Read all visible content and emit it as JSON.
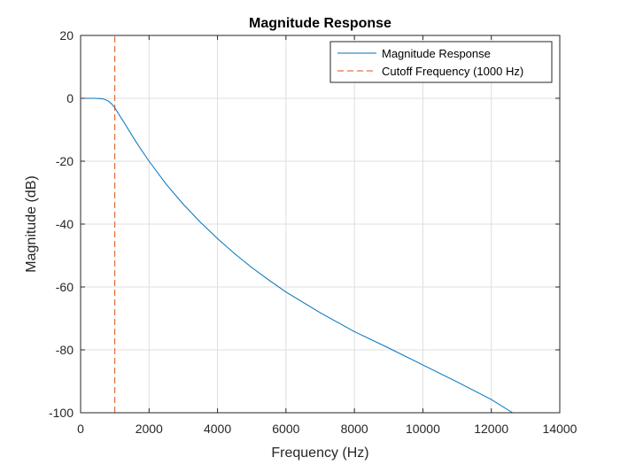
{
  "chart_data": {
    "type": "line",
    "title": "Magnitude Response",
    "xlabel": "Frequency (Hz)",
    "ylabel": "Magnitude (dB)",
    "xlim": [
      0,
      14000
    ],
    "ylim": [
      -100,
      20
    ],
    "xticks": [
      0,
      2000,
      4000,
      6000,
      8000,
      10000,
      12000,
      14000
    ],
    "xtick_labels": [
      "0",
      "2000",
      "4000",
      "6000",
      "8000",
      "10000",
      "12000",
      "14000"
    ],
    "yticks": [
      -100,
      -80,
      -60,
      -40,
      -20,
      0,
      20
    ],
    "ytick_labels": [
      "-100",
      "-80",
      "-60",
      "-40",
      "-20",
      "0",
      "20"
    ],
    "grid": true,
    "legend_position": "top-right",
    "series": [
      {
        "name": "Magnitude Response",
        "color": "#0072BD",
        "style": "solid",
        "x": [
          0,
          200,
          400,
          600,
          700,
          800,
          900,
          1000,
          1100,
          1200,
          1300,
          1400,
          1600,
          1800,
          2000,
          2500,
          3000,
          3500,
          4000,
          4500,
          5000,
          5500,
          6000,
          7000,
          8000,
          9000,
          10000,
          11000,
          12000,
          12620
        ],
        "y": [
          0,
          0,
          0,
          -0.1,
          -0.3,
          -0.8,
          -1.7,
          -3.0,
          -4.8,
          -6.5,
          -8.2,
          -10.0,
          -13.5,
          -16.8,
          -20.0,
          -27.3,
          -33.7,
          -39.4,
          -44.6,
          -49.4,
          -53.8,
          -57.8,
          -61.6,
          -68.2,
          -74.2,
          -79.4,
          -84.8,
          -90.2,
          -95.8,
          -100
        ]
      },
      {
        "name": "Cutoff Frequency (1000 Hz)",
        "color": "#D95319",
        "style": "dashed",
        "x": [
          1000,
          1000
        ],
        "y": [
          -100,
          20
        ]
      }
    ]
  }
}
